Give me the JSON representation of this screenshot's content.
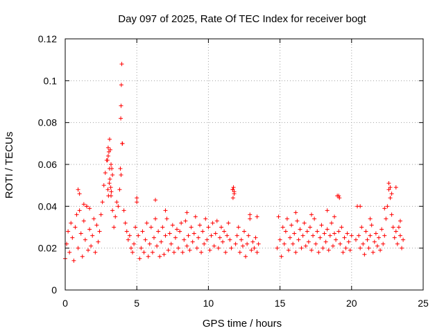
{
  "chart_data": {
    "type": "scatter",
    "title": "Day 097 of 2025, Rate Of TEC Index for receiver bogt",
    "xlabel": "GPS time / hours",
    "ylabel": "ROTI / TECUs",
    "xlim": [
      0,
      25
    ],
    "ylim": [
      0,
      0.12
    ],
    "x_ticks": [
      0,
      5,
      10,
      15,
      20,
      25
    ],
    "y_ticks": [
      0,
      0.02,
      0.04,
      0.06,
      0.08,
      0.1,
      0.12
    ],
    "x_tick_labels": [
      "0",
      "5",
      "10",
      "15",
      "20",
      "25"
    ],
    "y_tick_labels": [
      "0",
      "0.02",
      "0.04",
      "0.06",
      "0.08",
      "0.1",
      "0.12"
    ],
    "grid": true,
    "marker": "plus",
    "color": "#ff0000",
    "series": [
      {
        "values_note": "",
        "x": [
          0.0,
          0.1,
          0.2,
          0.3,
          0.4,
          0.5,
          0.6,
          0.7,
          0.8,
          0.9,
          1.0,
          1.1,
          1.2,
          1.3,
          1.4,
          1.5,
          1.6,
          1.7,
          1.8,
          1.9,
          2.0,
          2.1,
          2.2,
          2.3,
          2.4,
          2.5,
          2.6,
          2.7,
          2.8,
          2.9,
          3.0,
          3.1,
          3.2,
          3.3,
          3.4,
          3.5,
          3.6,
          3.7,
          3.8,
          3.9,
          4.0,
          4.1,
          4.2,
          4.3,
          4.4,
          4.5,
          4.6,
          4.7,
          4.8,
          4.9,
          5.0,
          5.1,
          5.2,
          5.3,
          5.4,
          5.5,
          5.6,
          5.7,
          5.8,
          5.9,
          6.0,
          6.1,
          6.2,
          6.3,
          6.4,
          6.5,
          6.6,
          6.7,
          6.8,
          6.9,
          7.0,
          7.1,
          7.2,
          7.3,
          7.4,
          7.5,
          7.6,
          7.7,
          7.8,
          7.9,
          8.0,
          8.1,
          8.2,
          8.3,
          8.4,
          8.5,
          8.6,
          8.7,
          8.8,
          8.9,
          9.0,
          9.1,
          9.2,
          9.3,
          9.4,
          9.5,
          9.6,
          9.7,
          9.8,
          9.9,
          10.0,
          10.1,
          10.2,
          10.3,
          10.4,
          10.5,
          10.6,
          10.7,
          10.8,
          10.9,
          11.0,
          11.1,
          11.2,
          11.3,
          11.4,
          11.5,
          11.6,
          11.7,
          11.8,
          11.9,
          12.0,
          12.1,
          12.2,
          12.3,
          12.4,
          12.5,
          12.6,
          12.7,
          12.8,
          12.9,
          13.0,
          13.1,
          13.2,
          13.3,
          13.4,
          13.5,
          14.8,
          14.9,
          15.0,
          15.1,
          15.2,
          15.3,
          15.4,
          15.5,
          15.6,
          15.7,
          15.8,
          15.9,
          16.0,
          16.1,
          16.2,
          16.3,
          16.4,
          16.5,
          16.6,
          16.7,
          16.8,
          16.9,
          17.0,
          17.1,
          17.2,
          17.3,
          17.4,
          17.5,
          17.6,
          17.7,
          17.8,
          17.9,
          18.0,
          18.1,
          18.2,
          18.3,
          18.4,
          18.5,
          18.6,
          18.7,
          18.8,
          18.9,
          19.0,
          19.1,
          19.2,
          19.3,
          19.4,
          19.5,
          19.6,
          19.7,
          19.8,
          19.9,
          20.0,
          20.3,
          20.4,
          20.5,
          20.6,
          20.7,
          20.8,
          20.9,
          21.0,
          21.1,
          21.2,
          21.3,
          21.4,
          21.5,
          21.6,
          21.7,
          21.8,
          21.9,
          22.0,
          22.1,
          22.2,
          22.3,
          22.4,
          22.5,
          22.6,
          22.7,
          22.8,
          22.9,
          23.0,
          23.1,
          23.2,
          23.3,
          23.4,
          23.5,
          23.6
        ],
        "y": [
          0.015,
          0.022,
          0.028,
          0.018,
          0.032,
          0.025,
          0.014,
          0.03,
          0.036,
          0.02,
          0.038,
          0.027,
          0.016,
          0.033,
          0.024,
          0.04,
          0.019,
          0.029,
          0.021,
          0.026,
          0.034,
          0.018,
          0.031,
          0.023,
          0.028,
          0.036,
          0.042,
          0.05,
          0.056,
          0.062,
          0.068,
          0.058,
          0.045,
          0.038,
          0.03,
          0.035,
          0.042,
          0.04,
          0.048,
          0.055,
          0.07,
          0.038,
          0.032,
          0.028,
          0.024,
          0.026,
          0.02,
          0.018,
          0.022,
          0.03,
          0.042,
          0.026,
          0.015,
          0.02,
          0.028,
          0.018,
          0.024,
          0.032,
          0.016,
          0.022,
          0.03,
          0.018,
          0.025,
          0.034,
          0.021,
          0.028,
          0.016,
          0.023,
          0.03,
          0.017,
          0.026,
          0.034,
          0.019,
          0.027,
          0.022,
          0.031,
          0.018,
          0.025,
          0.029,
          0.02,
          0.028,
          0.032,
          0.018,
          0.024,
          0.033,
          0.021,
          0.026,
          0.019,
          0.03,
          0.023,
          0.027,
          0.035,
          0.02,
          0.025,
          0.031,
          0.018,
          0.028,
          0.022,
          0.034,
          0.024,
          0.03,
          0.019,
          0.026,
          0.032,
          0.021,
          0.027,
          0.033,
          0.02,
          0.025,
          0.03,
          0.023,
          0.028,
          0.018,
          0.026,
          0.032,
          0.024,
          0.02,
          0.048,
          0.046,
          0.022,
          0.026,
          0.03,
          0.018,
          0.024,
          0.021,
          0.028,
          0.016,
          0.022,
          0.026,
          0.034,
          0.019,
          0.023,
          0.02,
          0.025,
          0.018,
          0.022,
          0.02,
          0.035,
          0.024,
          0.016,
          0.03,
          0.022,
          0.028,
          0.034,
          0.019,
          0.025,
          0.031,
          0.022,
          0.027,
          0.018,
          0.033,
          0.024,
          0.029,
          0.02,
          0.026,
          0.032,
          0.021,
          0.028,
          0.023,
          0.03,
          0.019,
          0.026,
          0.034,
          0.022,
          0.028,
          0.018,
          0.025,
          0.031,
          0.02,
          0.027,
          0.023,
          0.029,
          0.019,
          0.026,
          0.032,
          0.021,
          0.027,
          0.024,
          0.045,
          0.028,
          0.022,
          0.03,
          0.018,
          0.025,
          0.02,
          0.027,
          0.023,
          0.019,
          0.026,
          0.024,
          0.04,
          0.026,
          0.02,
          0.03,
          0.022,
          0.017,
          0.028,
          0.024,
          0.02,
          0.026,
          0.031,
          0.018,
          0.023,
          0.027,
          0.021,
          0.025,
          0.019,
          0.029,
          0.022,
          0.026,
          0.034,
          0.04,
          0.048,
          0.044,
          0.036,
          0.03,
          0.025,
          0.028,
          0.022,
          0.03,
          0.026,
          0.02,
          0.024
        ]
      },
      {
        "x": [
          3.95,
          3.92,
          3.9,
          3.88,
          3.98,
          3.85,
          3.1,
          3.05,
          3.0,
          2.95,
          3.15,
          3.2,
          3.25,
          3.3,
          3.12,
          3.08,
          2.98,
          3.18,
          3.22,
          3.02,
          11.7,
          11.75,
          11.8,
          11.72,
          19.1,
          19.15,
          22.6,
          22.7,
          22.8,
          23.1,
          0.9,
          1.0,
          1.3,
          1.5,
          1.7,
          5.0,
          6.3,
          7.0,
          8.5,
          12.9,
          13.4,
          16.1,
          17.2,
          18.3,
          18.8,
          20.6,
          21.3,
          22.3,
          23.4
        ],
        "y": [
          0.108,
          0.098,
          0.088,
          0.082,
          0.07,
          0.058,
          0.072,
          0.066,
          0.064,
          0.062,
          0.067,
          0.06,
          0.058,
          0.055,
          0.053,
          0.051,
          0.048,
          0.049,
          0.047,
          0.045,
          0.048,
          0.049,
          0.047,
          0.044,
          0.045,
          0.044,
          0.051,
          0.049,
          0.046,
          0.049,
          0.048,
          0.046,
          0.041,
          0.04,
          0.039,
          0.044,
          0.043,
          0.038,
          0.037,
          0.036,
          0.035,
          0.037,
          0.036,
          0.038,
          0.035,
          0.04,
          0.034,
          0.039,
          0.033
        ]
      }
    ]
  }
}
